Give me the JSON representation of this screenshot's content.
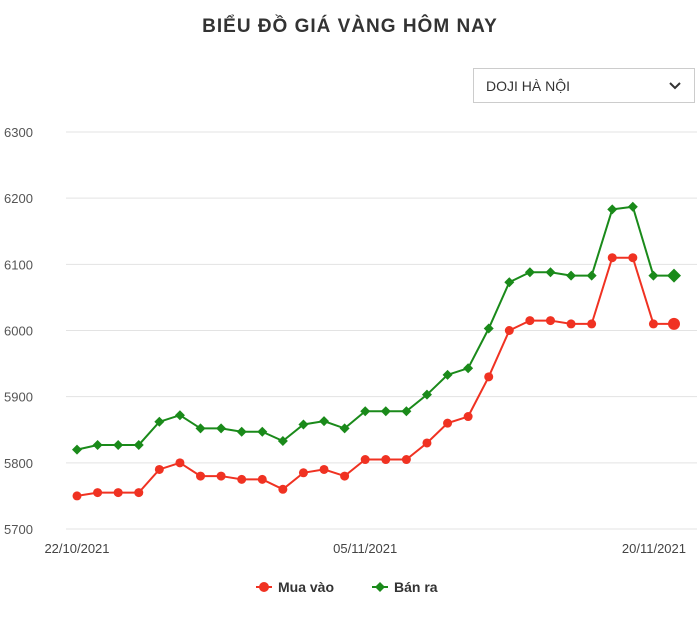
{
  "title": "BIỂU ĐỒ GIÁ VÀNG HÔM NAY",
  "selector": {
    "value": "DOJI HÀ NỘI",
    "icon": "chevron-down-icon"
  },
  "chart_data": {
    "type": "line",
    "title": "BIỂU ĐỒ GIÁ VÀNG HÔM NAY",
    "x": [
      "22/10/2021",
      "23/10/2021",
      "24/10/2021",
      "25/10/2021",
      "26/10/2021",
      "27/10/2021",
      "28/10/2021",
      "29/10/2021",
      "30/10/2021",
      "31/10/2021",
      "01/11/2021",
      "02/11/2021",
      "03/11/2021",
      "04/11/2021",
      "05/11/2021",
      "06/11/2021",
      "07/11/2021",
      "08/11/2021",
      "09/11/2021",
      "10/11/2021",
      "11/11/2021",
      "12/11/2021",
      "13/11/2021",
      "14/11/2021",
      "15/11/2021",
      "16/11/2021",
      "17/11/2021",
      "18/11/2021",
      "19/11/2021",
      "20/11/2021"
    ],
    "x_tick_labels": [
      "22/10/2021",
      "05/11/2021",
      "20/11/2021"
    ],
    "y_ticks": [
      5700,
      5800,
      5900,
      6000,
      6100,
      6200,
      6300
    ],
    "ylim": [
      5700,
      6300
    ],
    "grid": true,
    "legend_placement": "bottom",
    "series": [
      {
        "name": "Mua vào",
        "color": "#f03222",
        "marker": "circle",
        "values": [
          5750,
          5755,
          5755,
          5755,
          5790,
          5800,
          5780,
          5780,
          5775,
          5775,
          5760,
          5785,
          5790,
          5780,
          5805,
          5805,
          5805,
          5830,
          5860,
          5870,
          5930,
          6000,
          6015,
          6015,
          6010,
          6010,
          6110,
          6110,
          6010,
          6010
        ]
      },
      {
        "name": "Bán ra",
        "color": "#1a8a1a",
        "marker": "diamond",
        "values": [
          5820,
          5827,
          5827,
          5827,
          5862,
          5872,
          5852,
          5852,
          5847,
          5847,
          5833,
          5858,
          5863,
          5852,
          5878,
          5878,
          5878,
          5903,
          5933,
          5943,
          6003,
          6073,
          6088,
          6088,
          6083,
          6083,
          6183,
          6187,
          6083,
          6083
        ]
      }
    ]
  }
}
